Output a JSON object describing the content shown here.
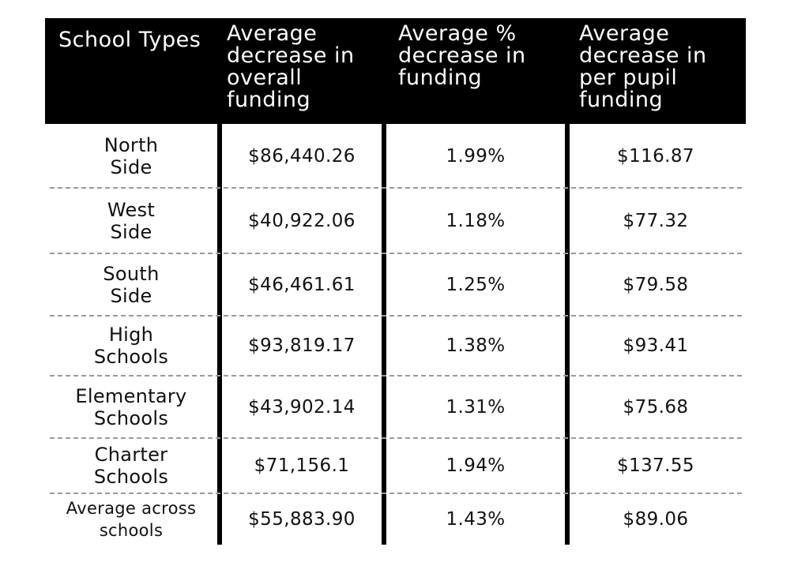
{
  "chart_data": {
    "type": "table",
    "columns": [
      "School Types",
      "Average decrease in overall funding",
      "Average % decrease in funding",
      "Average decrease in per pupil funding"
    ],
    "rows": [
      {
        "type": "North Side",
        "overall": "$86,440.26",
        "percent": "1.99%",
        "per_pupil": "$116.87"
      },
      {
        "type": "West Side",
        "overall": "$40,922.06",
        "percent": "1.18%",
        "per_pupil": "$77.32"
      },
      {
        "type": "South Side",
        "overall": "$46,461.61",
        "percent": "1.25%",
        "per_pupil": "$79.58"
      },
      {
        "type": "High Schools",
        "overall": "$93,819.17",
        "percent": "1.38%",
        "per_pupil": "$93.41"
      },
      {
        "type": "Elementary Schools",
        "overall": "$43,902.14",
        "percent": "1.31%",
        "per_pupil": "$75.68"
      },
      {
        "type": "Charter Schools",
        "overall": "$71,156.1",
        "percent": "1.94%",
        "per_pupil": "$137.55"
      },
      {
        "type": "Average across schools",
        "overall": "$55,883.90",
        "percent": "1.43%",
        "per_pupil": "$89.06"
      }
    ]
  }
}
